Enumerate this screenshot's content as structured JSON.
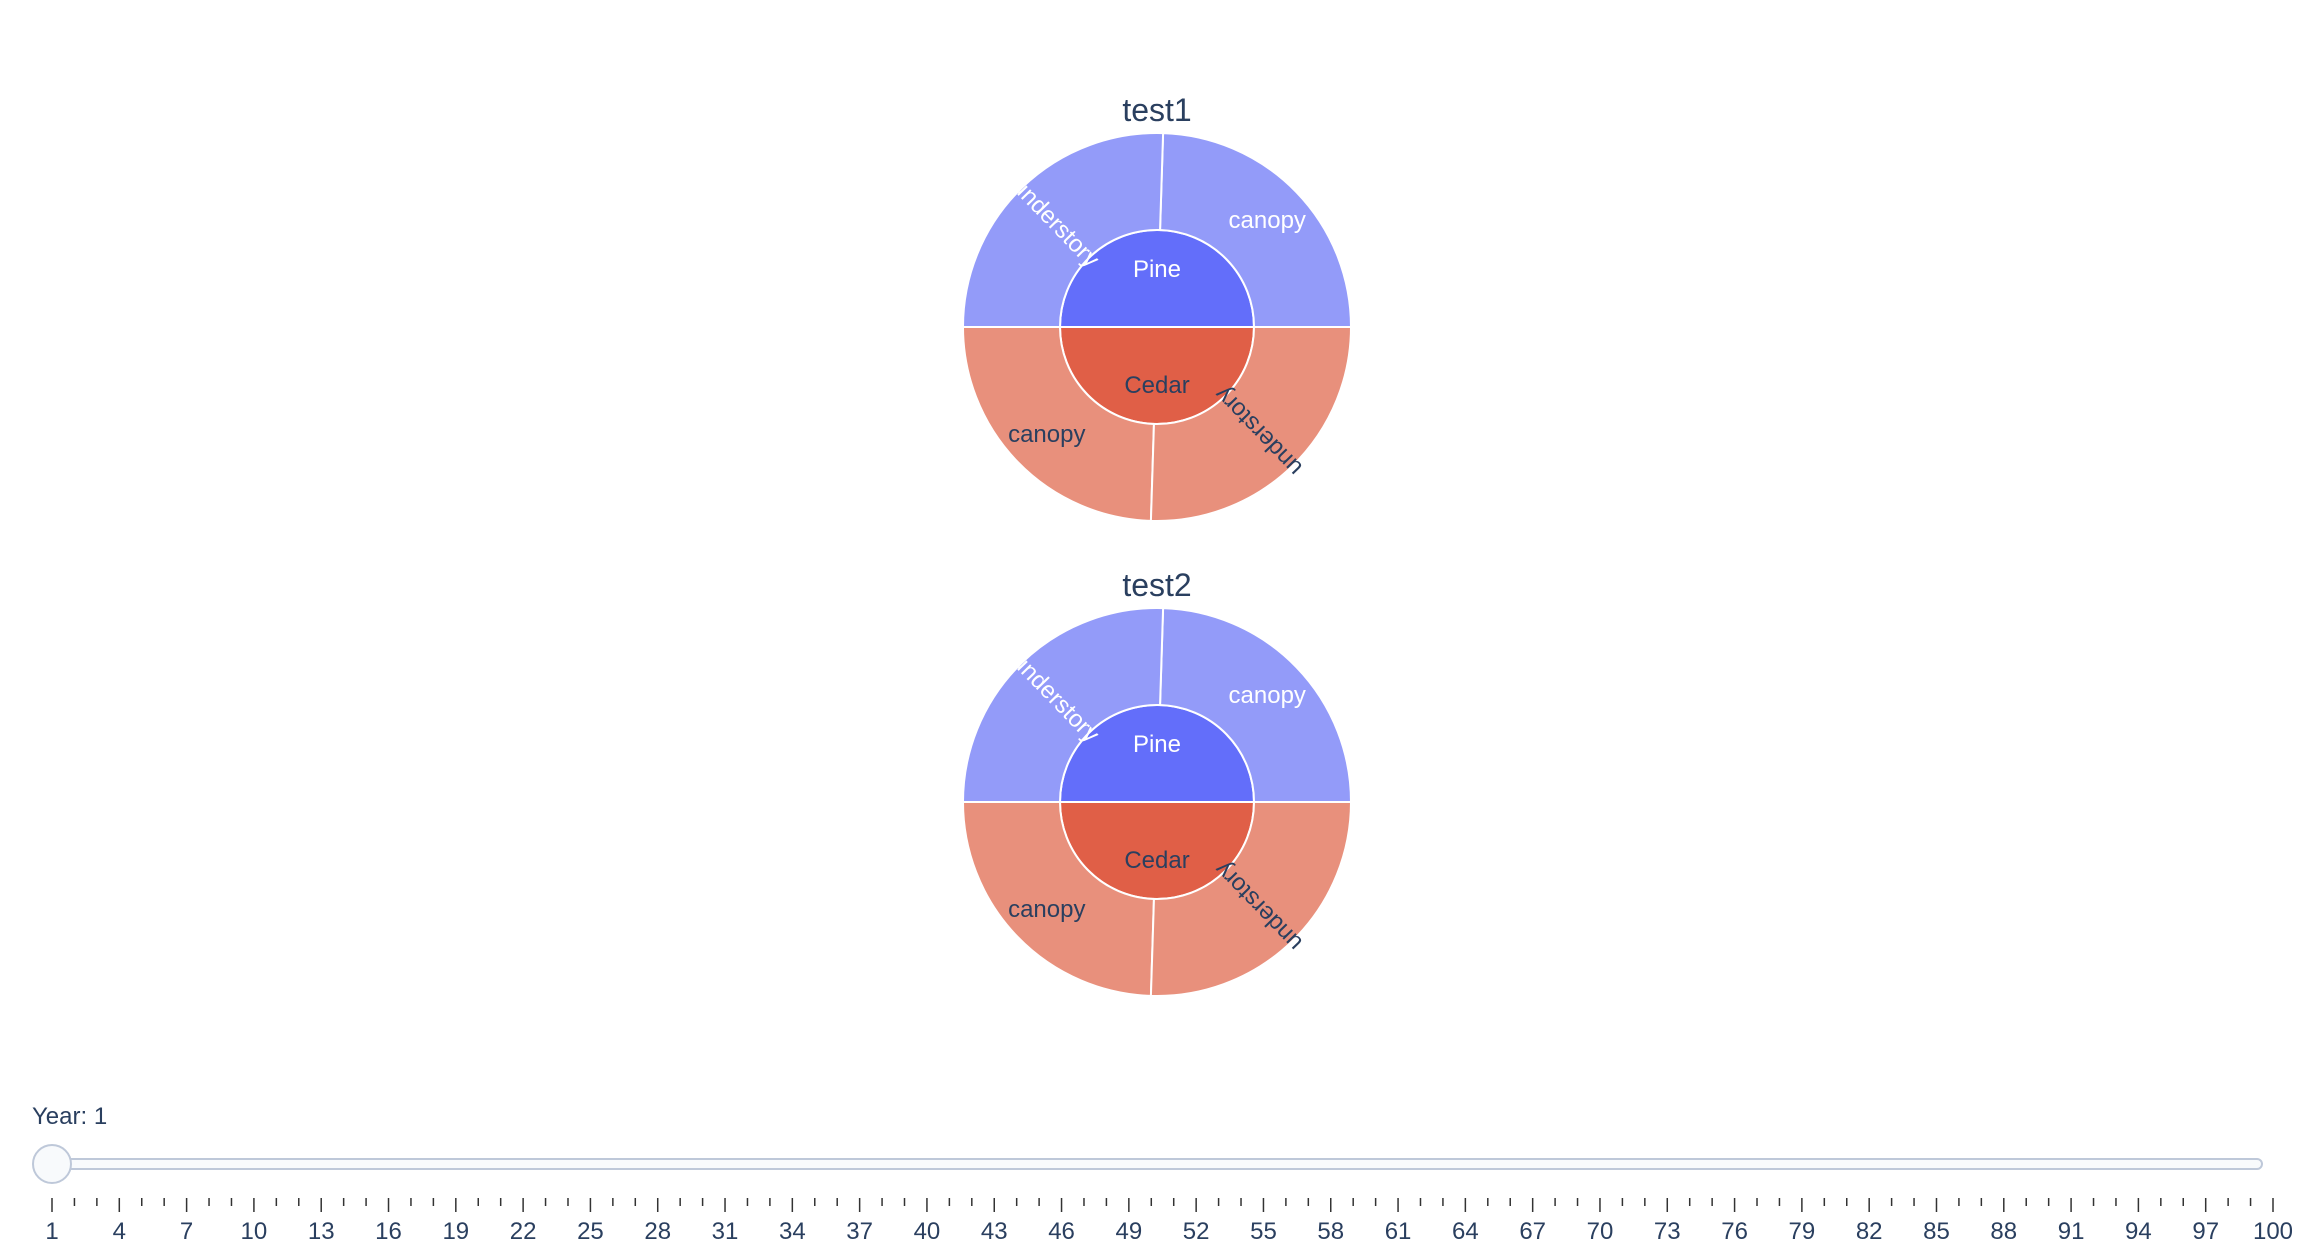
{
  "colors": {
    "pine_inner": "#636efa",
    "pine_outer": "#939bf9",
    "cedar_inner": "#e05f47",
    "cedar_outer": "#e8907c",
    "sector_border": "#ffffff",
    "text_dark": "#2a3f5f",
    "slider_rail": "#bec8d9",
    "slider_handle_fill": "#f8fafc",
    "tick_color": "#333333"
  },
  "chart_data": [
    {
      "type": "sunburst",
      "title": "test1",
      "inner": [
        {
          "label": "Pine",
          "value": 2,
          "text_color": "#ffffff",
          "color": "#636efa"
        },
        {
          "label": "Cedar",
          "value": 2,
          "text_color": "#2a3f5f",
          "color": "#e05f47"
        }
      ],
      "outer": [
        {
          "label": "canopy",
          "parent": "Pine",
          "value": 0.98,
          "text_color": "#ffffff",
          "color": "#939bf9",
          "rotate_label": false
        },
        {
          "label": "understory",
          "parent": "Pine",
          "value": 1.02,
          "text_color": "#ffffff",
          "color": "#939bf9",
          "rotate_label": true
        },
        {
          "label": "canopy",
          "parent": "Cedar",
          "value": 0.98,
          "text_color": "#2a3f5f",
          "color": "#e8907c",
          "rotate_label": false
        },
        {
          "label": "understory",
          "parent": "Cedar",
          "value": 1.02,
          "text_color": "#2a3f5f",
          "color": "#e8907c",
          "rotate_label": true
        }
      ]
    },
    {
      "type": "sunburst",
      "title": "test2",
      "inner": [
        {
          "label": "Pine",
          "value": 2,
          "text_color": "#ffffff",
          "color": "#636efa"
        },
        {
          "label": "Cedar",
          "value": 2,
          "text_color": "#2a3f5f",
          "color": "#e05f47"
        }
      ],
      "outer": [
        {
          "label": "canopy",
          "parent": "Pine",
          "value": 0.98,
          "text_color": "#ffffff",
          "color": "#939bf9",
          "rotate_label": false
        },
        {
          "label": "understory",
          "parent": "Pine",
          "value": 1.02,
          "text_color": "#ffffff",
          "color": "#939bf9",
          "rotate_label": true
        },
        {
          "label": "canopy",
          "parent": "Cedar",
          "value": 0.98,
          "text_color": "#2a3f5f",
          "color": "#e8907c",
          "rotate_label": false
        },
        {
          "label": "understory",
          "parent": "Cedar",
          "value": 1.02,
          "text_color": "#2a3f5f",
          "color": "#e8907c",
          "rotate_label": true
        }
      ]
    }
  ],
  "slider": {
    "prefix": "Year: ",
    "current_value": "1",
    "min": 1,
    "max": 100,
    "tick_labels": [
      "1",
      "4",
      "7",
      "10",
      "13",
      "16",
      "19",
      "22",
      "25",
      "28",
      "31",
      "34",
      "37",
      "40",
      "43",
      "46",
      "49",
      "52",
      "55",
      "58",
      "61",
      "64",
      "67",
      "70",
      "73",
      "76",
      "79",
      "82",
      "85",
      "88",
      "91",
      "94",
      "97",
      "100"
    ]
  }
}
